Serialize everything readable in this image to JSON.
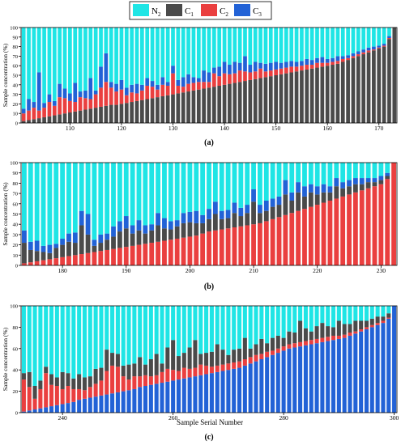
{
  "legend": {
    "entries": [
      {
        "base": "N",
        "sub": "2",
        "color": "#1fe5e5"
      },
      {
        "base": "C",
        "sub": "1",
        "color": "#4a4a4a"
      },
      {
        "base": "C",
        "sub": "2",
        "color": "#ea3f3f"
      },
      {
        "base": "C",
        "sub": "3",
        "color": "#2262d6"
      }
    ]
  },
  "colors": {
    "N2": "#1fe5e5",
    "C1": "#4a4a4a",
    "C2": "#ea3f3f",
    "C3": "#2262d6"
  },
  "chart_data": [
    {
      "type": "bar",
      "stacked": true,
      "panel_label": "(a)",
      "ylabel": "Sample concentration (%)",
      "xlabel": "",
      "ylim": [
        0,
        100
      ],
      "yticks": [
        0,
        10,
        20,
        30,
        40,
        50,
        60,
        70,
        80,
        90,
        100
      ],
      "xticks": [
        110,
        120,
        130,
        140,
        150,
        160,
        170
      ],
      "stack_order": [
        "C1",
        "C2",
        "C3",
        "N2"
      ],
      "x": [
        101,
        102,
        103,
        104,
        105,
        106,
        107,
        108,
        109,
        110,
        111,
        112,
        113,
        114,
        115,
        116,
        117,
        118,
        119,
        120,
        121,
        122,
        123,
        124,
        125,
        126,
        127,
        128,
        129,
        130,
        131,
        132,
        133,
        134,
        135,
        136,
        137,
        138,
        139,
        140,
        141,
        142,
        143,
        144,
        145,
        146,
        147,
        148,
        149,
        150,
        151,
        152,
        153,
        154,
        155,
        156,
        157,
        158,
        159,
        160,
        161,
        162,
        163,
        164,
        165,
        166,
        167,
        168,
        169,
        170,
        171,
        172,
        173
      ],
      "series": [
        {
          "key": "C1",
          "values": [
            2,
            3,
            4,
            5,
            6,
            7,
            8,
            9,
            10,
            11,
            12,
            13,
            14,
            15,
            16,
            17,
            18,
            19,
            19,
            20,
            21,
            22,
            23,
            24,
            25,
            26,
            27,
            28,
            29,
            30,
            31,
            32,
            33,
            34,
            35,
            36,
            37,
            38,
            39,
            40,
            41,
            42,
            43,
            44,
            45,
            46,
            47,
            48,
            49,
            50,
            51,
            52,
            53,
            54,
            55,
            56,
            57,
            58,
            59,
            60,
            61,
            62,
            64,
            66,
            68,
            70,
            72,
            74,
            76,
            78,
            80,
            88,
            100
          ]
        },
        {
          "key": "C2",
          "values": [
            8,
            10,
            12,
            8,
            10,
            15,
            10,
            18,
            16,
            12,
            10,
            14,
            12,
            10,
            14,
            20,
            25,
            18,
            14,
            15,
            8,
            10,
            8,
            10,
            14,
            12,
            8,
            12,
            10,
            22,
            8,
            6,
            8,
            8,
            8,
            7,
            6,
            14,
            10,
            12,
            10,
            10,
            12,
            10,
            8,
            8,
            10,
            6,
            6,
            6,
            6,
            6,
            6,
            5,
            5,
            5,
            4,
            5,
            4,
            3,
            3,
            3,
            3,
            2,
            2,
            2,
            2,
            2,
            1,
            1,
            1,
            1,
            0
          ]
        },
        {
          "key": "C3",
          "values": [
            5,
            12,
            6,
            40,
            5,
            8,
            5,
            14,
            10,
            8,
            20,
            6,
            8,
            22,
            4,
            22,
            30,
            6,
            8,
            10,
            8,
            8,
            10,
            6,
            8,
            6,
            5,
            8,
            4,
            8,
            6,
            10,
            10,
            6,
            4,
            12,
            10,
            6,
            10,
            12,
            10,
            12,
            8,
            16,
            8,
            10,
            6,
            8,
            8,
            8,
            6,
            6,
            6,
            5,
            5,
            6,
            5,
            5,
            6,
            4,
            4,
            5,
            3,
            3,
            3,
            3,
            3,
            3,
            3,
            2,
            2,
            2,
            0
          ]
        },
        {
          "key": "N2",
          "values": [
            85,
            75,
            78,
            47,
            79,
            70,
            77,
            59,
            64,
            69,
            58,
            67,
            66,
            53,
            66,
            41,
            27,
            57,
            59,
            55,
            63,
            60,
            59,
            60,
            53,
            56,
            60,
            52,
            57,
            40,
            55,
            52,
            49,
            52,
            53,
            45,
            47,
            42,
            41,
            36,
            39,
            36,
            37,
            30,
            39,
            36,
            37,
            38,
            37,
            36,
            37,
            36,
            35,
            36,
            35,
            33,
            34,
            32,
            31,
            33,
            32,
            30,
            30,
            29,
            27,
            25,
            23,
            21,
            20,
            19,
            17,
            9,
            0
          ]
        }
      ]
    },
    {
      "type": "bar",
      "stacked": true,
      "panel_label": "(b)",
      "ylabel": "Sample concentration (%)",
      "xlabel": "",
      "ylim": [
        0,
        100
      ],
      "yticks": [
        0,
        10,
        20,
        30,
        40,
        50,
        60,
        70,
        80,
        90,
        100
      ],
      "xticks": [
        180,
        190,
        200,
        210,
        220,
        230
      ],
      "stack_order": [
        "C2",
        "C1",
        "C3",
        "N2"
      ],
      "x": [
        174,
        175,
        176,
        177,
        178,
        179,
        180,
        181,
        182,
        183,
        184,
        185,
        186,
        187,
        188,
        189,
        190,
        191,
        192,
        193,
        194,
        195,
        196,
        197,
        198,
        199,
        200,
        201,
        202,
        203,
        204,
        205,
        206,
        207,
        208,
        209,
        210,
        211,
        212,
        213,
        214,
        215,
        216,
        217,
        218,
        219,
        220,
        221,
        222,
        223,
        224,
        225,
        226,
        227,
        228,
        229,
        230,
        231,
        232
      ],
      "series": [
        {
          "key": "C2",
          "values": [
            2,
            3,
            4,
            5,
            6,
            7,
            8,
            9,
            10,
            11,
            12,
            13,
            14,
            15,
            16,
            17,
            18,
            19,
            20,
            21,
            22,
            23,
            24,
            25,
            26,
            27,
            28,
            29,
            31,
            33,
            34,
            35,
            36,
            37,
            38,
            39,
            40,
            41,
            43,
            45,
            47,
            49,
            51,
            53,
            55,
            57,
            59,
            61,
            63,
            65,
            67,
            69,
            71,
            73,
            75,
            77,
            79,
            84,
            100
          ]
        },
        {
          "key": "C1",
          "values": [
            20,
            12,
            10,
            8,
            6,
            10,
            12,
            14,
            12,
            28,
            18,
            6,
            8,
            10,
            12,
            16,
            18,
            12,
            14,
            10,
            12,
            16,
            12,
            10,
            12,
            14,
            14,
            12,
            10,
            12,
            16,
            10,
            10,
            14,
            10,
            12,
            22,
            10,
            10,
            12,
            12,
            20,
            12,
            18,
            12,
            14,
            10,
            10,
            8,
            12,
            8,
            8,
            8,
            6,
            6,
            4,
            4,
            3,
            0
          ]
        },
        {
          "key": "C3",
          "values": [
            12,
            8,
            10,
            6,
            8,
            4,
            6,
            8,
            10,
            14,
            20,
            6,
            8,
            6,
            10,
            10,
            12,
            8,
            10,
            8,
            6,
            12,
            10,
            8,
            6,
            10,
            10,
            12,
            8,
            10,
            12,
            8,
            8,
            10,
            8,
            8,
            12,
            8,
            10,
            8,
            8,
            14,
            8,
            10,
            10,
            8,
            8,
            8,
            6,
            8,
            6,
            6,
            6,
            6,
            4,
            4,
            4,
            3,
            0
          ]
        },
        {
          "key": "N2",
          "values": [
            66,
            77,
            76,
            81,
            80,
            79,
            74,
            69,
            68,
            47,
            50,
            75,
            70,
            69,
            62,
            57,
            52,
            61,
            56,
            61,
            60,
            49,
            54,
            57,
            56,
            49,
            48,
            47,
            51,
            45,
            38,
            47,
            46,
            39,
            44,
            41,
            26,
            41,
            37,
            35,
            33,
            17,
            29,
            19,
            23,
            21,
            23,
            21,
            23,
            15,
            19,
            17,
            15,
            15,
            15,
            15,
            13,
            10,
            0
          ]
        }
      ]
    },
    {
      "type": "bar",
      "stacked": true,
      "panel_label": "(c)",
      "ylabel": "Sample concentration (%)",
      "xlabel": "Sample Serial Number",
      "ylim": [
        0,
        100
      ],
      "yticks": [
        0,
        20,
        40,
        60,
        80,
        100
      ],
      "xticks": [
        240,
        260,
        280,
        300
      ],
      "stack_order": [
        "C3",
        "C2",
        "C1",
        "N2"
      ],
      "x": [
        233,
        234,
        235,
        236,
        237,
        238,
        239,
        240,
        241,
        242,
        243,
        244,
        245,
        246,
        247,
        248,
        249,
        250,
        251,
        252,
        253,
        254,
        255,
        256,
        257,
        258,
        259,
        260,
        261,
        262,
        263,
        264,
        265,
        266,
        267,
        268,
        269,
        270,
        271,
        272,
        273,
        274,
        275,
        276,
        277,
        278,
        279,
        280,
        281,
        282,
        283,
        284,
        285,
        286,
        287,
        288,
        289,
        290,
        291,
        292,
        293,
        294,
        295,
        296,
        297,
        298,
        299,
        300
      ],
      "series": [
        {
          "key": "C3",
          "values": [
            1,
            2,
            3,
            4,
            5,
            6,
            7,
            8,
            9,
            10,
            12,
            13,
            14,
            15,
            16,
            17,
            18,
            19,
            20,
            21,
            22,
            24,
            25,
            26,
            27,
            28,
            29,
            30,
            31,
            32,
            33,
            34,
            35,
            36,
            37,
            38,
            39,
            40,
            41,
            42,
            44,
            46,
            48,
            50,
            52,
            54,
            56,
            58,
            60,
            61,
            62,
            63,
            64,
            65,
            66,
            67,
            68,
            69,
            70,
            72,
            74,
            76,
            78,
            80,
            82,
            84,
            88,
            100
          ]
        },
        {
          "key": "C2",
          "values": [
            30,
            22,
            10,
            18,
            32,
            20,
            18,
            14,
            16,
            12,
            10,
            8,
            10,
            12,
            14,
            22,
            26,
            24,
            14,
            10,
            12,
            10,
            10,
            8,
            8,
            10,
            12,
            10,
            8,
            10,
            8,
            8,
            10,
            8,
            6,
            6,
            6,
            6,
            6,
            6,
            6,
            6,
            6,
            5,
            5,
            4,
            4,
            4,
            4,
            4,
            4,
            4,
            4,
            4,
            4,
            4,
            4,
            3,
            3,
            3,
            2,
            2,
            2,
            2,
            2,
            2,
            1,
            0
          ]
        },
        {
          "key": "C1",
          "values": [
            6,
            14,
            12,
            8,
            6,
            10,
            8,
            16,
            12,
            10,
            14,
            12,
            10,
            14,
            12,
            20,
            12,
            12,
            10,
            14,
            12,
            18,
            10,
            16,
            20,
            8,
            20,
            28,
            14,
            14,
            20,
            26,
            10,
            12,
            14,
            20,
            14,
            8,
            12,
            12,
            20,
            8,
            10,
            14,
            8,
            12,
            12,
            8,
            12,
            10,
            20,
            12,
            8,
            12,
            14,
            10,
            8,
            14,
            10,
            8,
            10,
            8,
            6,
            6,
            6,
            4,
            4,
            0
          ]
        },
        {
          "key": "N2",
          "values": [
            63,
            62,
            75,
            70,
            57,
            64,
            67,
            62,
            63,
            68,
            64,
            67,
            66,
            59,
            58,
            41,
            44,
            45,
            56,
            55,
            54,
            48,
            55,
            50,
            45,
            54,
            39,
            32,
            47,
            44,
            39,
            32,
            45,
            44,
            43,
            36,
            41,
            46,
            41,
            40,
            30,
            40,
            36,
            31,
            35,
            30,
            28,
            30,
            24,
            25,
            14,
            21,
            24,
            19,
            16,
            19,
            20,
            14,
            17,
            17,
            14,
            14,
            14,
            12,
            10,
            10,
            7,
            0
          ]
        }
      ]
    }
  ]
}
